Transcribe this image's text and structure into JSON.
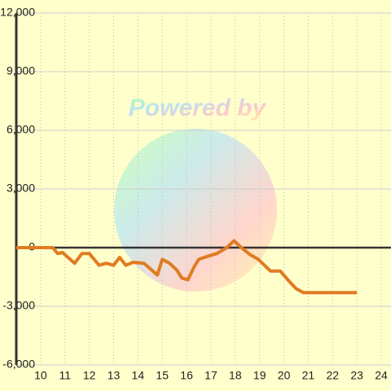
{
  "chart_data": {
    "type": "line",
    "watermark": "Powered by",
    "x": [
      9.0,
      10.0,
      10.5,
      10.7,
      10.9,
      11.4,
      11.7,
      12.0,
      12.4,
      12.7,
      13.0,
      13.25,
      13.5,
      13.8,
      14.25,
      14.8,
      15.0,
      15.3,
      15.6,
      15.8,
      16.05,
      16.3,
      16.5,
      16.85,
      17.25,
      17.65,
      17.95,
      18.25,
      18.6,
      18.95,
      19.45,
      19.85,
      20.2,
      20.5,
      20.8,
      23.0
    ],
    "series": [
      {
        "color": "#e07b22",
        "values": [
          0,
          0,
          0,
          -300,
          -250,
          -800,
          -300,
          -300,
          -900,
          -800,
          -900,
          -500,
          -900,
          -750,
          -800,
          -1400,
          -600,
          -800,
          -1150,
          -1550,
          -1650,
          -1000,
          -600,
          -450,
          -300,
          0,
          350,
          0,
          -350,
          -600,
          -1200,
          -1200,
          -1700,
          -2100,
          -2300,
          -2300
        ]
      }
    ],
    "xlim": [
      9,
      24.4
    ],
    "xticks": [
      10,
      11,
      12,
      13,
      14,
      15,
      16,
      17,
      18,
      19,
      20,
      21,
      22,
      23,
      24
    ],
    "ylim": [
      -6000,
      12000
    ],
    "yticks": [
      {
        "value": -6000,
        "label": "-6,000"
      },
      {
        "value": -3000,
        "label": "-3,000"
      },
      0,
      {
        "value": 3000,
        "label": "3,000"
      },
      {
        "value": 6000,
        "label": "6,000"
      },
      {
        "value": 9000,
        "label": "9,000"
      },
      {
        "value": 12000,
        "label": "12,000"
      }
    ],
    "grid": true
  }
}
